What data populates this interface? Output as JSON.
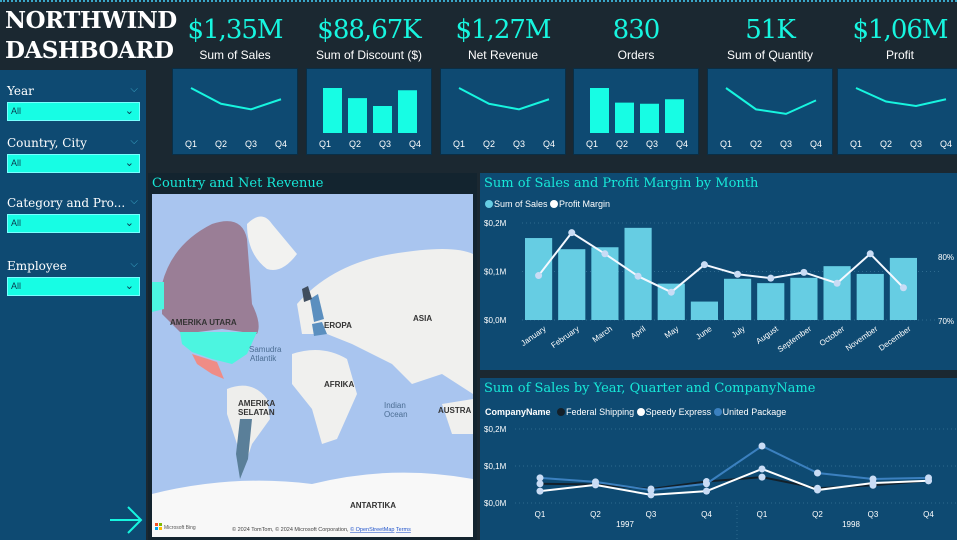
{
  "header": {
    "title_line1": "NORTHWIND",
    "title_line2": "DASHBOARD"
  },
  "slicers": [
    {
      "label": "Year",
      "value": "All"
    },
    {
      "label": "Country, City",
      "value": "All"
    },
    {
      "label": "Category and Pro...",
      "value": "All"
    },
    {
      "label": "Employee",
      "value": "All"
    }
  ],
  "kpis": [
    {
      "value": "$1,35M",
      "label": "Sum of Sales",
      "type": "line",
      "spark": [
        4,
        2.6,
        2.1,
        3
      ]
    },
    {
      "value": "$88,67K",
      "label": "Sum of Discount ($)",
      "type": "bar",
      "spark": [
        4,
        3.1,
        2.4,
        3.8
      ]
    },
    {
      "value": "$1,27M",
      "label": "Net Revenue",
      "type": "line",
      "spark": [
        4,
        2.6,
        2.1,
        3
      ]
    },
    {
      "value": "830",
      "label": "Orders",
      "type": "bar",
      "spark": [
        4,
        2.7,
        2.6,
        3
      ]
    },
    {
      "value": "51K",
      "label": "Sum of Quantity",
      "type": "line",
      "spark": [
        4,
        2.1,
        1.7,
        2.9
      ]
    },
    {
      "value": "$1,06M",
      "label": "Profit",
      "type": "line",
      "spark": [
        4,
        2.8,
        2.4,
        3
      ]
    }
  ],
  "spark_categories": [
    "Q1",
    "Q2",
    "Q3",
    "Q4"
  ],
  "map": {
    "title": "Country and Net Revenue",
    "labels": [
      "AMERIKA UTARA",
      "Samudra",
      "Atlantik",
      "EROPA",
      "ASIA",
      "AFRIKA",
      "AMERIKA",
      "SELATAN",
      "Indian",
      "Ocean",
      "AUSTRA",
      "ANTARTIKA"
    ],
    "bing": "Microsoft Bing",
    "copyright": "© 2024 TomTom, © 2024 Microsoft Corporation, ",
    "osm": "© OpenStreetMap",
    "terms": "Terms"
  },
  "colors": {
    "accent": "#17f5df",
    "panel": "#0e4a72",
    "background": "#1b2831",
    "bars": "#66cde3"
  },
  "chart_data": [
    {
      "type": "bar",
      "title": "Sum of Sales and Profit Margin by Month",
      "legend": [
        "Sum of Sales",
        "Profit Margin"
      ],
      "categories": [
        "January",
        "February",
        "March",
        "April",
        "May",
        "June",
        "July",
        "August",
        "September",
        "October",
        "November",
        "December"
      ],
      "series": [
        {
          "name": "Sum of Sales",
          "type": "bar",
          "axis": "left",
          "values": [
            0.169,
            0.146,
            0.15,
            0.19,
            0.075,
            0.038,
            0.085,
            0.076,
            0.087,
            0.111,
            0.095,
            0.128
          ]
        },
        {
          "name": "Profit Margin",
          "type": "line",
          "axis": "right",
          "values": [
            77.1,
            83.8,
            80.5,
            77.0,
            74.5,
            78.8,
            77.3,
            76.7,
            77.6,
            75.9,
            80.5,
            75.2
          ]
        }
      ],
      "yticks": [
        "$0,0M",
        "$0,1M",
        "$0,2M"
      ],
      "ylim": [
        0,
        0.2
      ],
      "y2ticks": [
        "70%",
        "80%"
      ],
      "y2lim": [
        70,
        80
      ],
      "grid": true,
      "legend_position": "top-left"
    },
    {
      "type": "line",
      "title": "Sum of Sales by Year, Quarter and CompanyName",
      "legend_title": "CompanyName",
      "categories": [
        "Q1",
        "Q2",
        "Q3",
        "Q4",
        "Q1",
        "Q2",
        "Q3",
        "Q4"
      ],
      "years": [
        "1997",
        "1998"
      ],
      "series": [
        {
          "name": "Federal Shipping",
          "color": "#13202a",
          "values": [
            0.052,
            0.05,
            0.038,
            0.058,
            0.07,
            0.04,
            0.048,
            0.06
          ]
        },
        {
          "name": "Speedy Express",
          "color": "#ffffff",
          "values": [
            0.032,
            0.049,
            0.022,
            0.032,
            0.092,
            0.035,
            0.054,
            0.06
          ]
        },
        {
          "name": "United Package",
          "color": "#3b80bf",
          "values": [
            0.068,
            0.057,
            0.035,
            0.052,
            0.154,
            0.081,
            0.065,
            0.068
          ]
        }
      ],
      "yticks": [
        "$0,0M",
        "$0,1M",
        "$0,2M"
      ],
      "ylim": [
        0,
        0.2
      ],
      "grid": true,
      "legend_position": "top-left"
    }
  ]
}
